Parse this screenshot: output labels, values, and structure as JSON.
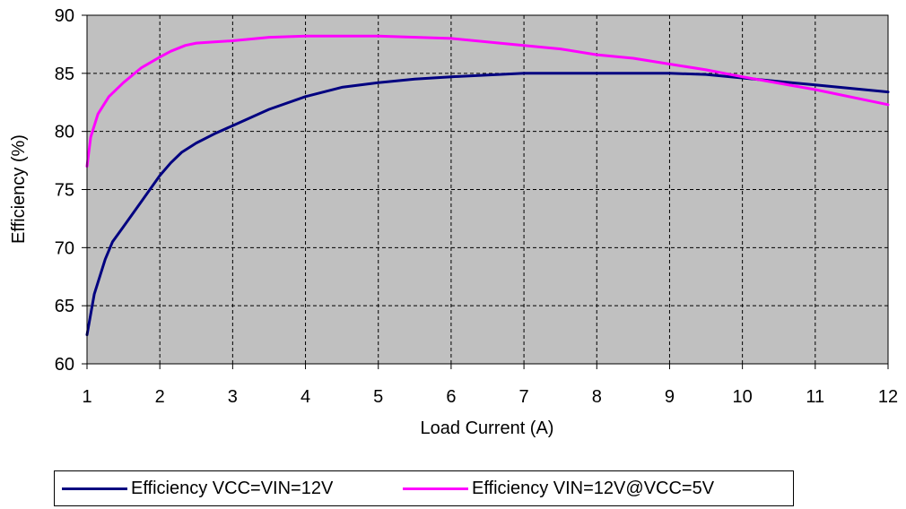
{
  "chart_data": {
    "type": "line",
    "title": "",
    "xlabel": "Load Current (A)",
    "ylabel": "Efficiency (%)",
    "xlim": [
      1,
      12
    ],
    "ylim": [
      60,
      90
    ],
    "xticks": [
      "1",
      "2",
      "3",
      "4",
      "5",
      "6",
      "7",
      "8",
      "9",
      "10",
      "11",
      "12"
    ],
    "yticks": [
      "60",
      "65",
      "70",
      "75",
      "80",
      "85",
      "90"
    ],
    "grid": true,
    "legend_position": "bottom",
    "plot_background": "#c0c0c0",
    "series": [
      {
        "name": "Efficiency VCC=VIN=12V",
        "color": "#000080",
        "points": [
          [
            1.0,
            62.5
          ],
          [
            1.1,
            66.0
          ],
          [
            1.25,
            69.0
          ],
          [
            1.35,
            70.5
          ],
          [
            1.5,
            71.8
          ],
          [
            1.75,
            74.0
          ],
          [
            2.0,
            76.2
          ],
          [
            2.15,
            77.3
          ],
          [
            2.3,
            78.2
          ],
          [
            2.5,
            79.0
          ],
          [
            2.75,
            79.8
          ],
          [
            3.0,
            80.5
          ],
          [
            3.5,
            81.9
          ],
          [
            4.0,
            83.0
          ],
          [
            4.5,
            83.8
          ],
          [
            5.0,
            84.2
          ],
          [
            5.5,
            84.5
          ],
          [
            6.0,
            84.7
          ],
          [
            7.0,
            85.0
          ],
          [
            8.0,
            85.0
          ],
          [
            9.0,
            85.0
          ],
          [
            9.5,
            84.9
          ],
          [
            10.0,
            84.6
          ],
          [
            11.0,
            84.0
          ],
          [
            12.0,
            83.4
          ]
        ]
      },
      {
        "name": "Efficiency VIN=12V@VCC=5V",
        "color": "#ff00ff",
        "points": [
          [
            1.0,
            77.0
          ],
          [
            1.05,
            79.5
          ],
          [
            1.15,
            81.5
          ],
          [
            1.3,
            83.0
          ],
          [
            1.5,
            84.2
          ],
          [
            1.75,
            85.5
          ],
          [
            2.0,
            86.4
          ],
          [
            2.15,
            86.9
          ],
          [
            2.35,
            87.4
          ],
          [
            2.5,
            87.6
          ],
          [
            2.75,
            87.7
          ],
          [
            3.0,
            87.8
          ],
          [
            3.5,
            88.1
          ],
          [
            4.0,
            88.2
          ],
          [
            4.5,
            88.2
          ],
          [
            5.0,
            88.2
          ],
          [
            6.0,
            88.0
          ],
          [
            7.0,
            87.4
          ],
          [
            7.5,
            87.1
          ],
          [
            8.0,
            86.6
          ],
          [
            8.5,
            86.3
          ],
          [
            9.0,
            85.8
          ],
          [
            9.5,
            85.3
          ],
          [
            10.0,
            84.7
          ],
          [
            11.0,
            83.6
          ],
          [
            12.0,
            82.3
          ]
        ]
      }
    ]
  }
}
